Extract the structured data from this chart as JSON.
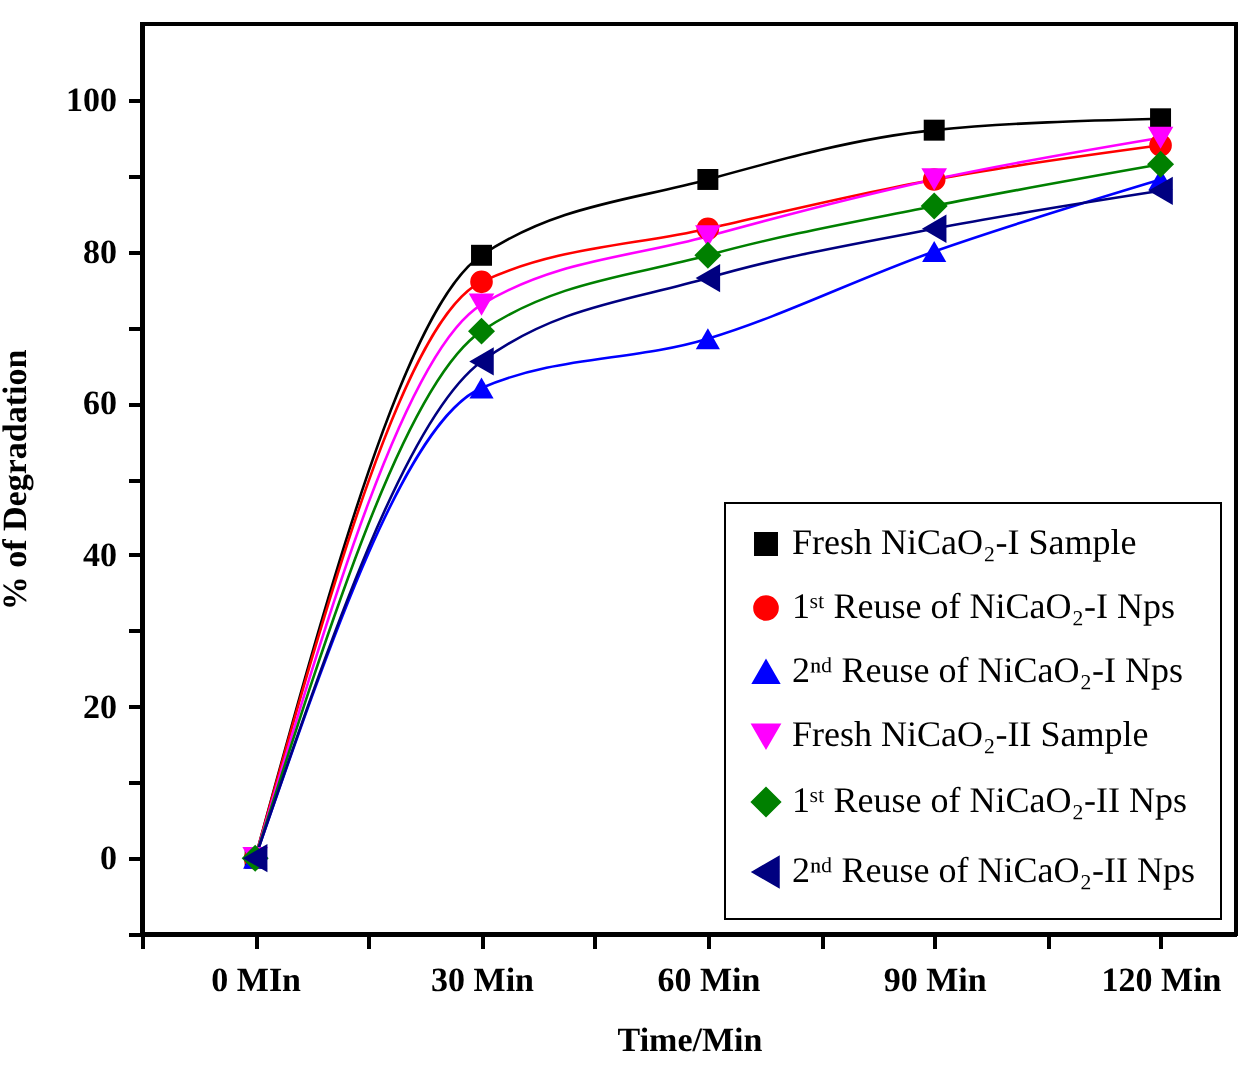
{
  "chart_data": {
    "type": "line",
    "xlabel": "Time/Min",
    "ylabel": "% of Degradation",
    "x": [
      0,
      30,
      60,
      90,
      120
    ],
    "xlim": [
      -15,
      130
    ],
    "xticks": [
      {
        "value": -15,
        "label": null
      },
      {
        "value": 0,
        "label": "0 MIn"
      },
      {
        "value": 15,
        "label": null
      },
      {
        "value": 30,
        "label": "30 Min"
      },
      {
        "value": 45,
        "label": null
      },
      {
        "value": 60,
        "label": "60 Min"
      },
      {
        "value": 75,
        "label": null
      },
      {
        "value": 90,
        "label": "90 Min"
      },
      {
        "value": 105,
        "label": null
      },
      {
        "value": 120,
        "label": "120 Min"
      }
    ],
    "ylim": [
      -10,
      110
    ],
    "yticks": [
      {
        "value": -10,
        "label": null
      },
      0,
      {
        "value": 10,
        "label": null
      },
      20,
      {
        "value": 30,
        "label": null
      },
      40,
      {
        "value": 50,
        "label": null
      },
      60,
      {
        "value": 70,
        "label": null
      },
      80,
      {
        "value": 90,
        "label": null
      },
      100
    ],
    "grid": false,
    "legend": "bottom right",
    "line_style": "solid",
    "series": [
      {
        "name": "Fresh NiCaO₂-I Sample",
        "color": "#000000",
        "marker": "square",
        "values": [
          0,
          79.5,
          89.5,
          96,
          97.5
        ]
      },
      {
        "name": "1ˢᵗ Reuse of NiCaO₂-I Nps",
        "color": "#ff0000",
        "marker": "circle",
        "values": [
          0,
          76,
          83,
          89.5,
          94
        ]
      },
      {
        "name": "2ⁿᵈ Reuse of NiCaO₂-I Nps",
        "color": "#0000ff",
        "marker": "triangle",
        "values": [
          0,
          62,
          68.5,
          80,
          89.5
        ]
      },
      {
        "name": "Fresh NiCaO₂-II Sample",
        "color": "#ff00ff",
        "marker": "triangle-down",
        "values": [
          0,
          73,
          82,
          89.5,
          95
        ]
      },
      {
        "name": "1ˢᵗ Reuse of NiCaO₂-II Nps",
        "color": "#008000",
        "marker": "diamond",
        "values": [
          0,
          69.5,
          79.5,
          86,
          91.5
        ]
      },
      {
        "name": "2ⁿᵈ Reuse of NiCaO₂-II Nps",
        "color": "#000080",
        "marker": "triangle-left",
        "values": [
          0,
          65.5,
          76.5,
          83,
          88
        ]
      }
    ]
  }
}
